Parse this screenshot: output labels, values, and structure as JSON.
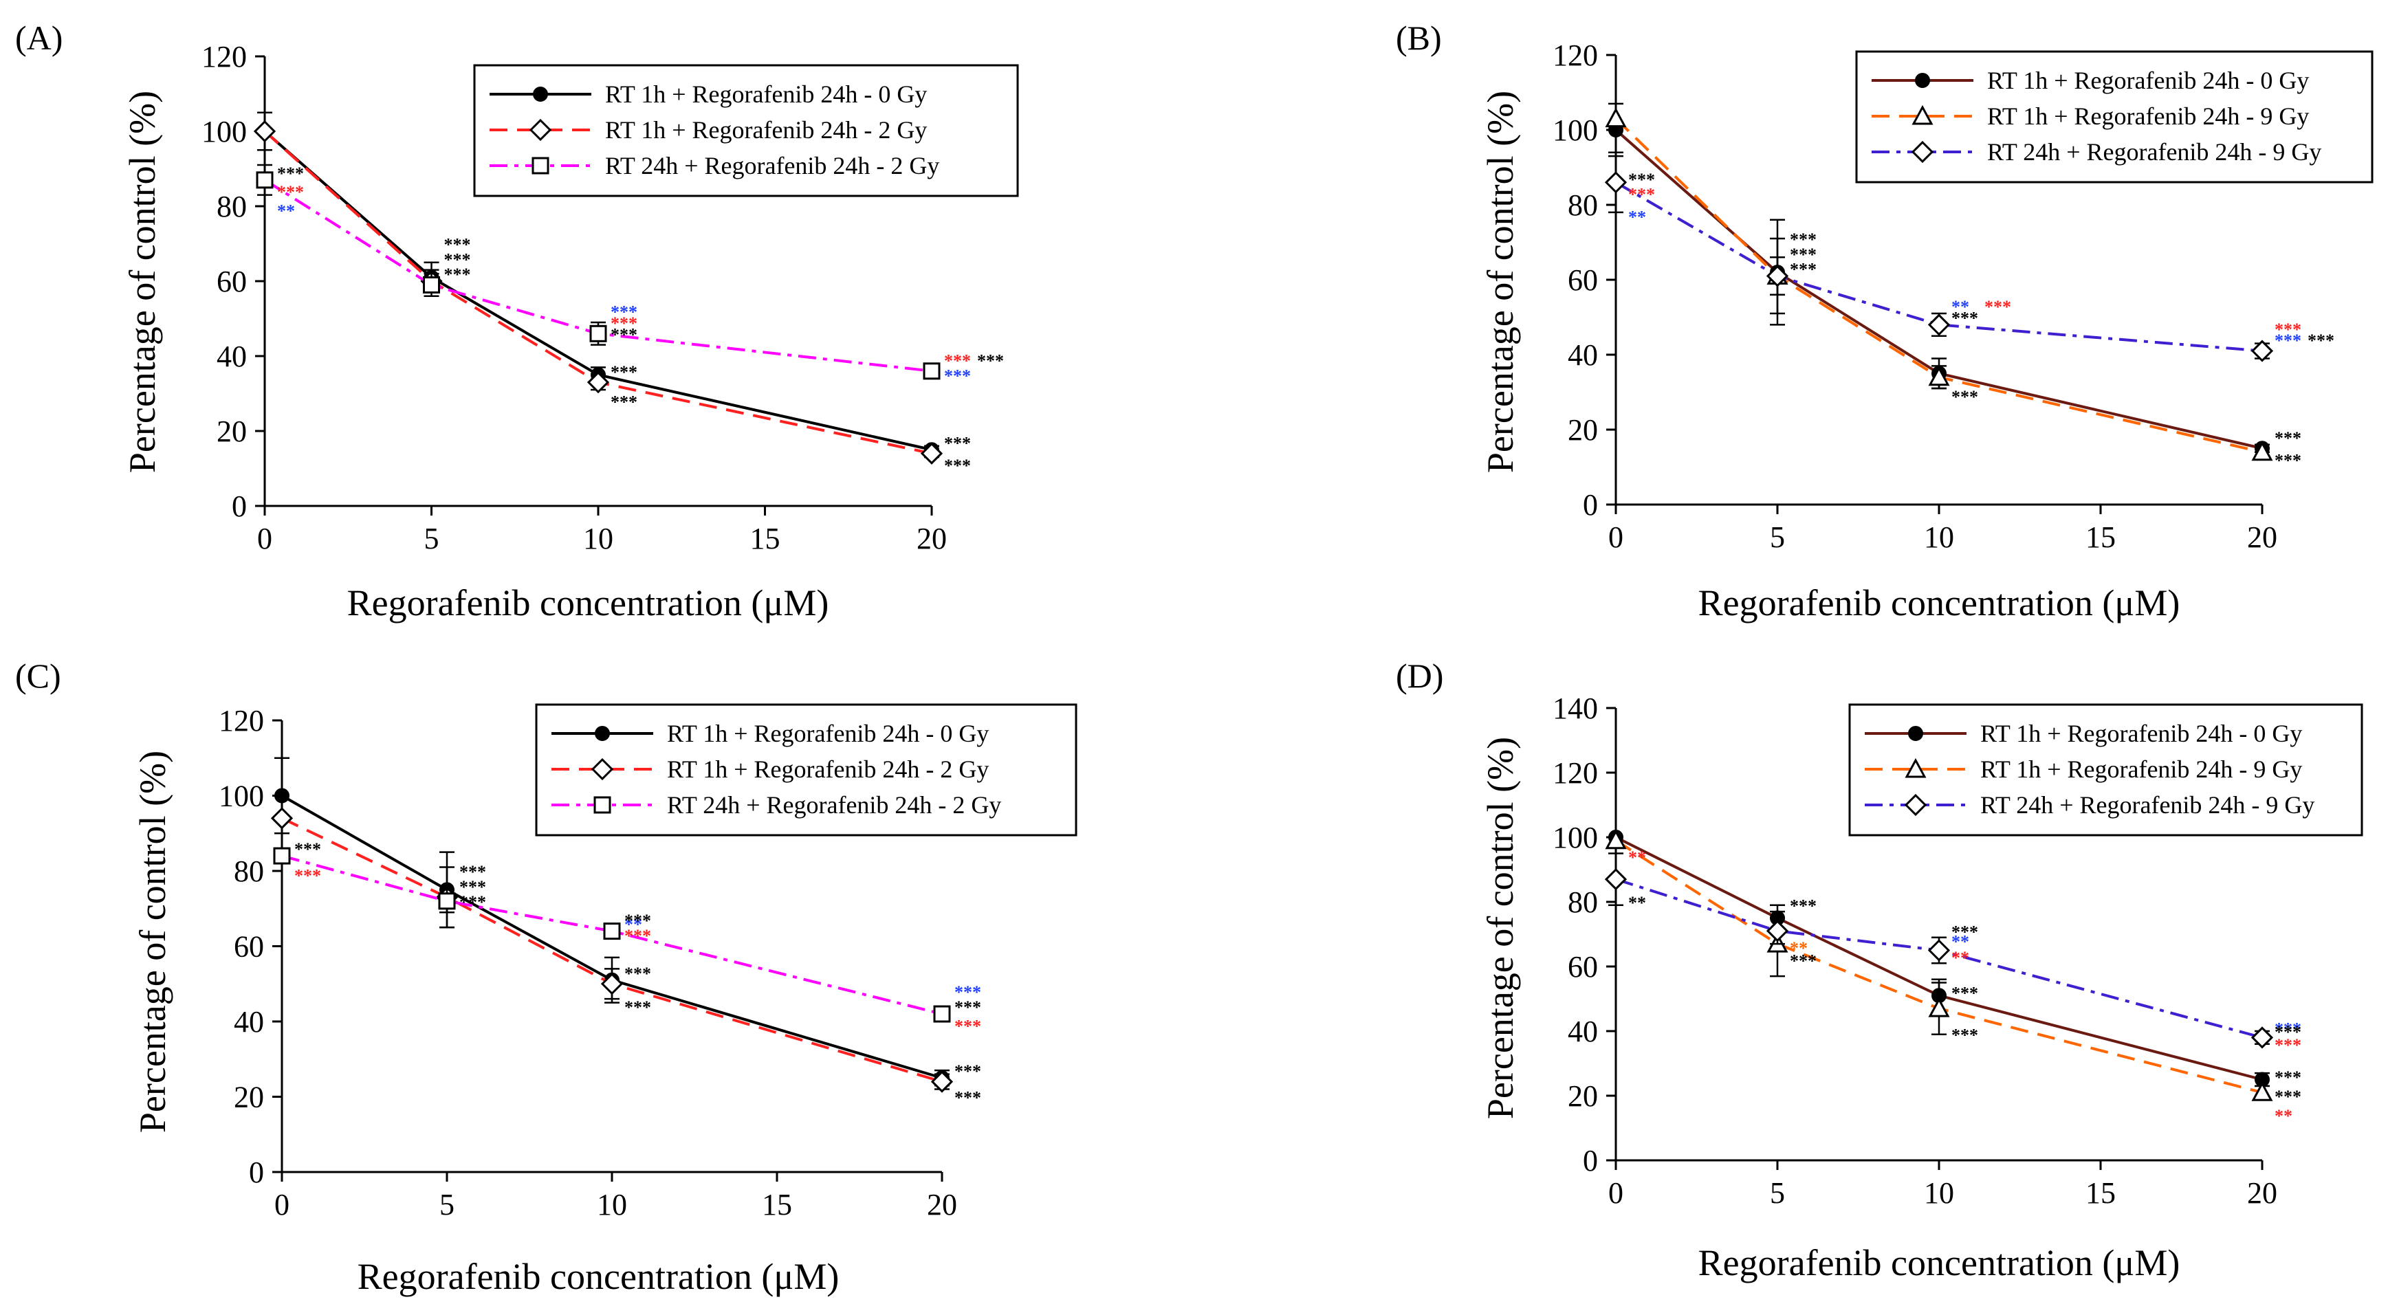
{
  "figure": {
    "panels": [
      "A",
      "B",
      "C",
      "D"
    ]
  },
  "colors": {
    "black": "#000000",
    "red": "#ff2020",
    "orange": "#ff6600",
    "magenta": "#ff00ff",
    "purple": "#3f1fd0",
    "blue": "#2040ff",
    "darkred": "#6a1a10"
  },
  "chart_data": [
    {
      "panel_label": "(A)",
      "type": "line",
      "xlabel": "Regorafenib concentration (μM)",
      "ylabel": "Percentage of control (%)",
      "xlim": [
        0,
        20
      ],
      "ylim": [
        0,
        120
      ],
      "xticks": [
        0,
        5,
        10,
        15,
        20
      ],
      "yticks": [
        0,
        20,
        40,
        60,
        80,
        100,
        120
      ],
      "legend_position": "top-right",
      "series": [
        {
          "name": "RT 1h + Regorafenib 24h - 0 Gy",
          "color": "#000000",
          "dash": "solid",
          "marker": "dot",
          "x": [
            0,
            5,
            10,
            20
          ],
          "values": [
            100,
            61,
            35,
            15
          ],
          "errors": [
            5,
            4,
            2,
            1
          ]
        },
        {
          "name": "RT 1h + Regorafenib 24h - 2 Gy",
          "color": "#ff2020",
          "dash": "dash",
          "marker": "diamond",
          "x": [
            0,
            5,
            10,
            20
          ],
          "values": [
            100,
            60,
            33,
            14
          ],
          "errors": [
            0,
            3,
            2,
            1
          ]
        },
        {
          "name": "RT 24h + Regorafenib 24h - 2 Gy",
          "color": "#ff00ff",
          "dash": "dashdot",
          "marker": "square",
          "x": [
            0,
            5,
            10,
            20
          ],
          "values": [
            87,
            59,
            46,
            36
          ],
          "errors": [
            4,
            3,
            3,
            1
          ]
        }
      ],
      "significance": [
        {
          "x": 0,
          "y": 89,
          "text": "***",
          "color": "#000000"
        },
        {
          "x": 0,
          "y": 84,
          "text": "***",
          "color": "#ff2020"
        },
        {
          "x": 0,
          "y": 79,
          "text": "**",
          "color": "#2040ff"
        },
        {
          "x": 5,
          "y": 70,
          "text": "***",
          "color": "#000000"
        },
        {
          "x": 5,
          "y": 66,
          "text": "***",
          "color": "#000000"
        },
        {
          "x": 5,
          "y": 62,
          "text": "***",
          "color": "#000000"
        },
        {
          "x": 10,
          "y": 52,
          "text": "***",
          "color": "#2040ff"
        },
        {
          "x": 10,
          "y": 49,
          "text": "***",
          "color": "#ff2020"
        },
        {
          "x": 10,
          "y": 46,
          "text": "***",
          "color": "#000000"
        },
        {
          "x": 10,
          "y": 36,
          "text": "***",
          "color": "#000000"
        },
        {
          "x": 10,
          "y": 28,
          "text": "***",
          "color": "#000000"
        },
        {
          "x": 20,
          "y": 39,
          "text": "***",
          "color": "#ff2020"
        },
        {
          "x": 20,
          "y": 39,
          "text": "***",
          "color": "#000000"
        },
        {
          "x": 20,
          "y": 35,
          "text": "***",
          "color": "#2040ff"
        },
        {
          "x": 20,
          "y": 17,
          "text": "***",
          "color": "#000000"
        },
        {
          "x": 20,
          "y": 11,
          "text": "***",
          "color": "#000000"
        }
      ]
    },
    {
      "panel_label": "(B)",
      "type": "line",
      "xlabel": "Regorafenib concentration (μM)",
      "ylabel": "Percentage of control (%)",
      "xlim": [
        0,
        20
      ],
      "ylim": [
        0,
        120
      ],
      "xticks": [
        0,
        5,
        10,
        15,
        20
      ],
      "yticks": [
        0,
        20,
        40,
        60,
        80,
        100,
        120
      ],
      "legend_position": "top-right",
      "series": [
        {
          "name": "RT 1h + Regorafenib 24h - 0 Gy",
          "color": "#6a1a10",
          "dash": "solid",
          "marker": "dot",
          "x": [
            0,
            5,
            10,
            20
          ],
          "values": [
            100,
            62,
            35,
            15
          ],
          "errors": [
            7,
            14,
            4,
            1
          ]
        },
        {
          "name": "RT 1h + Regorafenib 24h - 9 Gy",
          "color": "#ff6600",
          "dash": "dash",
          "marker": "triangle",
          "x": [
            0,
            5,
            10,
            20
          ],
          "values": [
            103,
            61,
            34,
            14
          ],
          "errors": [
            0,
            10,
            3,
            1
          ]
        },
        {
          "name": "RT 24h + Regorafenib 24h - 9 Gy",
          "color": "#3f1fd0",
          "dash": "dashdot",
          "marker": "diamond",
          "x": [
            0,
            5,
            10,
            20
          ],
          "values": [
            86,
            61,
            48,
            41
          ],
          "errors": [
            8,
            5,
            3,
            2
          ]
        }
      ],
      "significance": [
        {
          "x": 0,
          "y": 87,
          "text": "***",
          "color": "#000000"
        },
        {
          "x": 0,
          "y": 83,
          "text": "***",
          "color": "#ff2020"
        },
        {
          "x": 0,
          "y": 77,
          "text": "**",
          "color": "#2040ff"
        },
        {
          "x": 5,
          "y": 71,
          "text": "***",
          "color": "#000000"
        },
        {
          "x": 5,
          "y": 67,
          "text": "***",
          "color": "#000000"
        },
        {
          "x": 5,
          "y": 63,
          "text": "***",
          "color": "#000000"
        },
        {
          "x": 10,
          "y": 53,
          "text": "**",
          "color": "#2040ff"
        },
        {
          "x": 10,
          "y": 53,
          "text": "***",
          "color": "#ff2020"
        },
        {
          "x": 10,
          "y": 50,
          "text": "***",
          "color": "#000000"
        },
        {
          "x": 10,
          "y": 29,
          "text": "***",
          "color": "#000000"
        },
        {
          "x": 20,
          "y": 47,
          "text": "***",
          "color": "#ff2020"
        },
        {
          "x": 20,
          "y": 44,
          "text": "***",
          "color": "#2040ff"
        },
        {
          "x": 20,
          "y": 44,
          "text": "***",
          "color": "#000000"
        },
        {
          "x": 20,
          "y": 18,
          "text": "***",
          "color": "#000000"
        },
        {
          "x": 20,
          "y": 12,
          "text": "***",
          "color": "#000000"
        }
      ]
    },
    {
      "panel_label": "(C)",
      "type": "line",
      "xlabel": "Regorafenib concentration (μM)",
      "ylabel": "Percentage of control (%)",
      "xlim": [
        0,
        20
      ],
      "ylim": [
        0,
        120
      ],
      "xticks": [
        0,
        5,
        10,
        15,
        20
      ],
      "yticks": [
        0,
        20,
        40,
        60,
        80,
        100,
        120
      ],
      "legend_position": "top-right",
      "series": [
        {
          "name": "RT 1h + Regorafenib 24h - 0 Gy",
          "color": "#000000",
          "dash": "solid",
          "marker": "dot",
          "x": [
            0,
            5,
            10,
            20
          ],
          "values": [
            100,
            75,
            51,
            25
          ],
          "errors": [
            10,
            10,
            6,
            2
          ]
        },
        {
          "name": "RT 1h + Regorafenib 24h - 2 Gy",
          "color": "#ff2020",
          "dash": "dash",
          "marker": "diamond",
          "x": [
            0,
            5,
            10,
            20
          ],
          "values": [
            94,
            73,
            50,
            24
          ],
          "errors": [
            0,
            8,
            4,
            2
          ]
        },
        {
          "name": "RT 24h + Regorafenib 24h - 2 Gy",
          "color": "#ff00ff",
          "dash": "dashdot",
          "marker": "square",
          "x": [
            0,
            5,
            10,
            20
          ],
          "values": [
            84,
            72,
            64,
            42
          ],
          "errors": [
            2,
            3,
            1,
            1
          ]
        }
      ],
      "significance": [
        {
          "x": 0,
          "y": 86,
          "text": "***",
          "color": "#000000"
        },
        {
          "x": 0,
          "y": 79,
          "text": "***",
          "color": "#ff2020"
        },
        {
          "x": 5,
          "y": 80,
          "text": "***",
          "color": "#000000"
        },
        {
          "x": 5,
          "y": 76,
          "text": "***",
          "color": "#000000"
        },
        {
          "x": 5,
          "y": 72,
          "text": "***",
          "color": "#000000"
        },
        {
          "x": 10,
          "y": 66,
          "text": "**",
          "color": "#2040ff"
        },
        {
          "x": 10,
          "y": 67,
          "text": "***",
          "color": "#000000"
        },
        {
          "x": 10,
          "y": 63,
          "text": "***",
          "color": "#ff2020"
        },
        {
          "x": 10,
          "y": 53,
          "text": "***",
          "color": "#000000"
        },
        {
          "x": 10,
          "y": 44,
          "text": "***",
          "color": "#000000"
        },
        {
          "x": 20,
          "y": 48,
          "text": "***",
          "color": "#2040ff"
        },
        {
          "x": 20,
          "y": 44,
          "text": "***",
          "color": "#000000"
        },
        {
          "x": 20,
          "y": 39,
          "text": "***",
          "color": "#ff2020"
        },
        {
          "x": 20,
          "y": 27,
          "text": "***",
          "color": "#000000"
        },
        {
          "x": 20,
          "y": 20,
          "text": "***",
          "color": "#000000"
        }
      ]
    },
    {
      "panel_label": "(D)",
      "type": "line",
      "xlabel": "Regorafenib concentration (μM)",
      "ylabel": "Percentage of control (%)",
      "xlim": [
        0,
        20
      ],
      "ylim": [
        0,
        140
      ],
      "xticks": [
        0,
        5,
        10,
        15,
        20
      ],
      "yticks": [
        0,
        20,
        40,
        60,
        80,
        100,
        120,
        140
      ],
      "legend_position": "top-right",
      "series": [
        {
          "name": "RT 1h + Regorafenib 24h - 0 Gy",
          "color": "#6a1a10",
          "dash": "solid",
          "marker": "dot",
          "x": [
            0,
            5,
            10,
            20
          ],
          "values": [
            100,
            75,
            51,
            25
          ],
          "errors": [
            0,
            4,
            5,
            2
          ]
        },
        {
          "name": "RT 1h + Regorafenib 24h - 9 Gy",
          "color": "#ff6600",
          "dash": "dash",
          "marker": "triangle",
          "x": [
            0,
            5,
            10,
            20
          ],
          "values": [
            99,
            67,
            47,
            21
          ],
          "errors": [
            0,
            10,
            8,
            2
          ]
        },
        {
          "name": "RT 24h + Regorafenib 24h - 9 Gy",
          "color": "#3f1fd0",
          "dash": "dashdot",
          "marker": "diamond",
          "x": [
            0,
            5,
            10,
            20
          ],
          "values": [
            87,
            71,
            65,
            38
          ],
          "errors": [
            8,
            4,
            4,
            2
          ]
        }
      ],
      "significance": [
        {
          "x": 0,
          "y": 94,
          "text": "**",
          "color": "#ff2020"
        },
        {
          "x": 0,
          "y": 80,
          "text": "**",
          "color": "#000000"
        },
        {
          "x": 5,
          "y": 79,
          "text": "***",
          "color": "#000000"
        },
        {
          "x": 5,
          "y": 66,
          "text": "**",
          "color": "#ff6600"
        },
        {
          "x": 5,
          "y": 62,
          "text": "***",
          "color": "#000000"
        },
        {
          "x": 10,
          "y": 71,
          "text": "***",
          "color": "#000000"
        },
        {
          "x": 10,
          "y": 68,
          "text": "**",
          "color": "#2040ff"
        },
        {
          "x": 10,
          "y": 63,
          "text": "**",
          "color": "#ff2020"
        },
        {
          "x": 10,
          "y": 52,
          "text": "***",
          "color": "#000000"
        },
        {
          "x": 10,
          "y": 39,
          "text": "***",
          "color": "#000000"
        },
        {
          "x": 20,
          "y": 41,
          "text": "***",
          "color": "#2040ff"
        },
        {
          "x": 20,
          "y": 40,
          "text": "***",
          "color": "#000000"
        },
        {
          "x": 20,
          "y": 36,
          "text": "***",
          "color": "#ff2020"
        },
        {
          "x": 20,
          "y": 26,
          "text": "***",
          "color": "#000000"
        },
        {
          "x": 20,
          "y": 20,
          "text": "***",
          "color": "#000000"
        },
        {
          "x": 20,
          "y": 14,
          "text": "**",
          "color": "#ff2020"
        }
      ]
    }
  ]
}
